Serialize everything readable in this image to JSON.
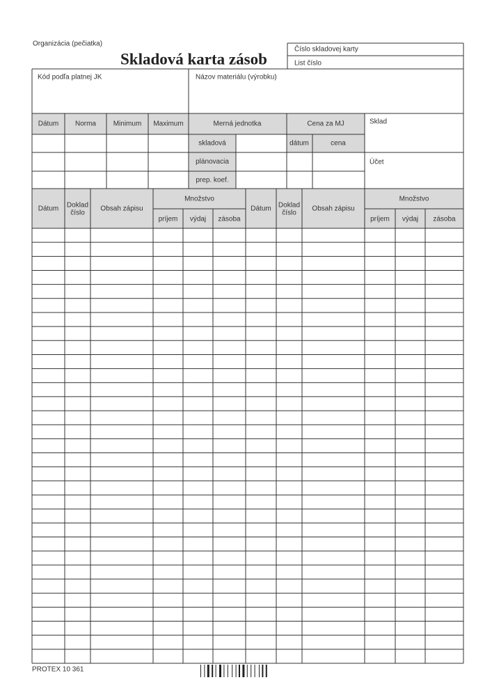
{
  "header": {
    "organization": "Organizácia (pečiatka)",
    "title": "Skladová karta zásob",
    "card_number": "Číslo skladovej karty",
    "sheet_number": "List číslo"
  },
  "fields": {
    "code": "Kód podľa platnej JK",
    "material_name": "Názov materiálu (výrobku)",
    "warehouse": "Sklad",
    "account": "Účet"
  },
  "limits_table": {
    "headers": [
      "Dátum",
      "Norma",
      "Minimum",
      "Maximum"
    ]
  },
  "unit": {
    "header": "Merná jednotka",
    "rows": [
      "skladová",
      "plánovacia",
      "prep. koef."
    ]
  },
  "price": {
    "header": "Cena za MJ",
    "subheaders": [
      "dátum",
      "cena"
    ]
  },
  "ledger": {
    "date": "Dátum",
    "document": [
      "Doklad",
      "číslo"
    ],
    "content": "Obsah zápisu",
    "quantity": "Množstvo",
    "quantity_columns": [
      "príjem",
      "výdaj",
      "zásoba"
    ]
  },
  "footer": {
    "publisher": "PROTEX 10 361"
  }
}
